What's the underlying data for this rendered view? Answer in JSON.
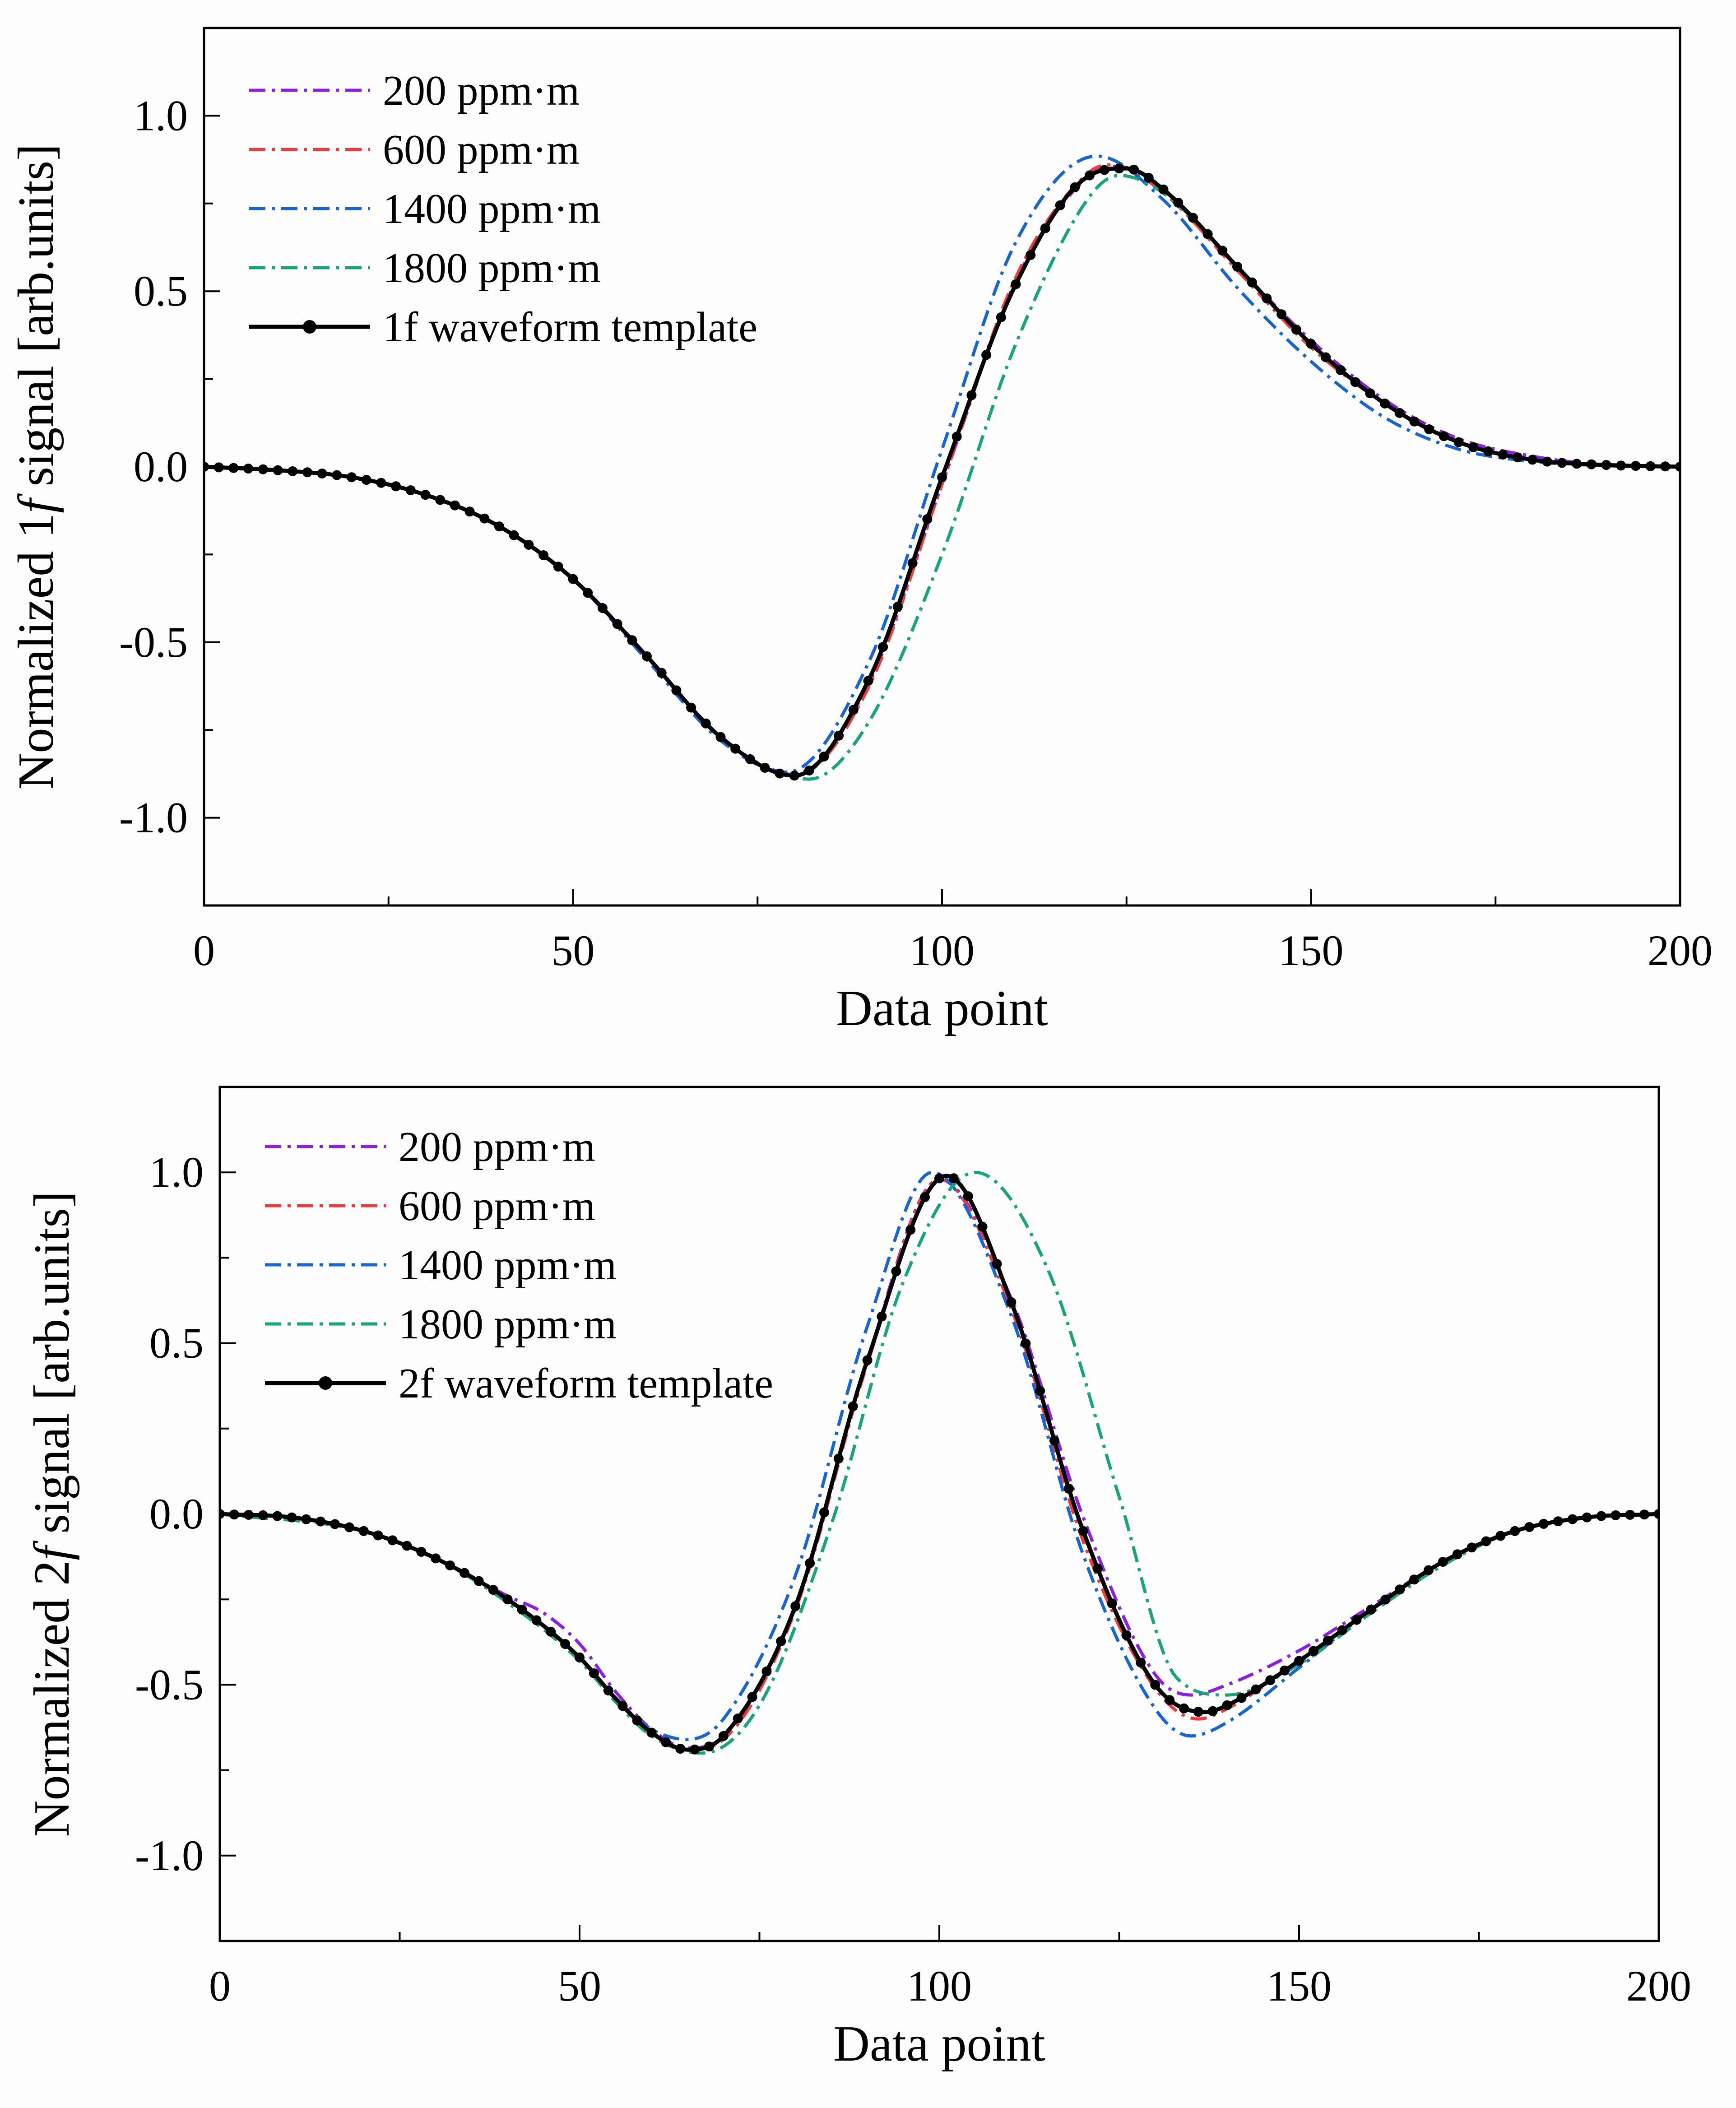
{
  "chart_data": [
    {
      "type": "line",
      "xlabel": "Data point",
      "ylabel": {
        "pre": "Normalized 1",
        "italic": "f",
        "post": " signal [arb.units]"
      },
      "xlim": [
        0,
        200
      ],
      "ylim": [
        -1.25,
        1.25
      ],
      "xticks": [
        0,
        50,
        100,
        150,
        200
      ],
      "xtick_labels": [
        "0",
        "50",
        "100",
        "150",
        "200"
      ],
      "yticks": [
        -1.0,
        -0.5,
        0.0,
        0.5,
        1.0
      ],
      "ytick_labels": [
        "-1.0",
        "-0.5",
        "0.0",
        "0.5",
        "1.0"
      ],
      "legend_position": "top-left",
      "grid": false,
      "series": [
        {
          "name": "200 ppm·m",
          "color": "#8b1ee8",
          "style": "dashdot",
          "x": [
            0,
            20,
            30,
            40,
            50,
            60,
            70,
            80,
            90,
            100,
            110,
            120,
            124,
            130,
            140,
            150,
            160,
            170,
            180,
            190,
            200
          ],
          "y": [
            0,
            -0.03,
            -0.08,
            -0.17,
            -0.32,
            -0.55,
            -0.77,
            -0.875,
            -0.62,
            -0.05,
            0.53,
            0.83,
            0.855,
            0.79,
            0.57,
            0.36,
            0.19,
            0.08,
            0.03,
            0.005,
            0
          ]
        },
        {
          "name": "600 ppm·m",
          "color": "#ef3b3b",
          "style": "dashdot",
          "x": [
            0,
            20,
            30,
            40,
            50,
            60,
            70,
            80,
            90,
            100,
            110,
            120,
            123,
            130,
            140,
            150,
            160,
            170,
            180,
            190,
            200
          ],
          "y": [
            0,
            -0.03,
            -0.08,
            -0.17,
            -0.32,
            -0.54,
            -0.77,
            -0.88,
            -0.63,
            -0.05,
            0.54,
            0.84,
            0.86,
            0.78,
            0.56,
            0.34,
            0.18,
            0.07,
            0.02,
            0.005,
            0
          ]
        },
        {
          "name": "1400 ppm·m",
          "color": "#1565d8",
          "style": "dashdot",
          "x": [
            0,
            20,
            30,
            40,
            50,
            60,
            70,
            79,
            90,
            100,
            110,
            121,
            130,
            140,
            150,
            160,
            170,
            180,
            190,
            200
          ],
          "y": [
            0,
            -0.03,
            -0.08,
            -0.17,
            -0.32,
            -0.55,
            -0.78,
            -0.87,
            -0.56,
            0.05,
            0.64,
            0.885,
            0.76,
            0.51,
            0.3,
            0.14,
            0.05,
            0.015,
            0.003,
            0
          ]
        },
        {
          "name": "1800 ppm·m",
          "color": "#17a57a",
          "style": "dashdot",
          "x": [
            0,
            20,
            30,
            40,
            50,
            60,
            70,
            82,
            90,
            100,
            110,
            120,
            124,
            130,
            140,
            150,
            160,
            170,
            180,
            190,
            200
          ],
          "y": [
            0,
            -0.03,
            -0.08,
            -0.17,
            -0.32,
            -0.54,
            -0.77,
            -0.89,
            -0.73,
            -0.25,
            0.35,
            0.77,
            0.83,
            0.78,
            0.57,
            0.35,
            0.18,
            0.07,
            0.02,
            0.005,
            0
          ]
        },
        {
          "name": "1f waveform template",
          "color": "#000000",
          "style": "solid-markers",
          "x": [
            0,
            10,
            20,
            30,
            40,
            50,
            60,
            70,
            80,
            90,
            100,
            110,
            120,
            125,
            130,
            140,
            150,
            160,
            170,
            180,
            190,
            200
          ],
          "y": [
            0,
            -0.01,
            -0.03,
            -0.08,
            -0.17,
            -0.32,
            -0.54,
            -0.77,
            -0.88,
            -0.61,
            -0.03,
            0.52,
            0.83,
            0.85,
            0.79,
            0.57,
            0.35,
            0.18,
            0.07,
            0.02,
            0.005,
            0
          ]
        }
      ]
    },
    {
      "type": "line",
      "xlabel": "Data point",
      "ylabel": {
        "pre": "Normalized 2",
        "italic": "f",
        "post": " signal [arb.units]"
      },
      "xlim": [
        0,
        200
      ],
      "ylim": [
        -1.25,
        1.25
      ],
      "xticks": [
        0,
        50,
        100,
        150,
        200
      ],
      "xtick_labels": [
        "0",
        "50",
        "100",
        "150",
        "200"
      ],
      "yticks": [
        -1.0,
        -0.5,
        0.0,
        0.5,
        1.0
      ],
      "ytick_labels": [
        "-1.0",
        "-0.5",
        "0.0",
        "0.5",
        "1.0"
      ],
      "legend_position": "top-left",
      "grid": false,
      "series": [
        {
          "name": "200 ppm·m",
          "color": "#8b1ee8",
          "style": "dashdot",
          "x": [
            0,
            20,
            30,
            40,
            45,
            50,
            55,
            60,
            65,
            70,
            80,
            90,
            100,
            110,
            120,
            130,
            135,
            140,
            150,
            160,
            170,
            180,
            190,
            200
          ],
          "y": [
            0,
            -0.05,
            -0.13,
            -0.24,
            -0.29,
            -0.38,
            -0.52,
            -0.63,
            -0.685,
            -0.65,
            -0.27,
            0.45,
            0.98,
            0.63,
            -0.01,
            -0.47,
            -0.53,
            -0.5,
            -0.4,
            -0.27,
            -0.14,
            -0.05,
            -0.01,
            0
          ]
        },
        {
          "name": "600 ppm·m",
          "color": "#ef3b3b",
          "style": "dashdot",
          "x": [
            0,
            20,
            30,
            40,
            50,
            55,
            60,
            65,
            70,
            80,
            90,
            100,
            110,
            120,
            130,
            136,
            140,
            150,
            160,
            170,
            180,
            190,
            200
          ],
          "y": [
            0,
            -0.05,
            -0.13,
            -0.25,
            -0.42,
            -0.54,
            -0.64,
            -0.69,
            -0.66,
            -0.28,
            0.44,
            0.98,
            0.6,
            -0.08,
            -0.51,
            -0.6,
            -0.57,
            -0.43,
            -0.28,
            -0.14,
            -0.05,
            -0.01,
            0
          ]
        },
        {
          "name": "1400 ppm·m",
          "color": "#1565d8",
          "style": "dashdot",
          "x": [
            0,
            20,
            30,
            40,
            50,
            55,
            60,
            65,
            70,
            80,
            90,
            99,
            110,
            120,
            130,
            135,
            140,
            150,
            160,
            170,
            180,
            190,
            200
          ],
          "y": [
            0,
            -0.05,
            -0.13,
            -0.25,
            -0.42,
            -0.54,
            -0.63,
            -0.66,
            -0.6,
            -0.18,
            0.55,
            1.0,
            0.58,
            -0.12,
            -0.57,
            -0.65,
            -0.61,
            -0.45,
            -0.28,
            -0.14,
            -0.05,
            -0.01,
            0
          ]
        },
        {
          "name": "1800 ppm·m",
          "color": "#17a57a",
          "style": "dashdot",
          "x": [
            0,
            20,
            30,
            40,
            50,
            55,
            60,
            67,
            75,
            85,
            95,
            105,
            115,
            125,
            133,
            140,
            150,
            160,
            170,
            180,
            190,
            200
          ],
          "y": [
            0,
            -0.05,
            -0.13,
            -0.26,
            -0.43,
            -0.55,
            -0.65,
            -0.7,
            -0.56,
            -0.03,
            0.68,
            1.0,
            0.72,
            0.05,
            -0.48,
            -0.53,
            -0.44,
            -0.29,
            -0.15,
            -0.05,
            -0.01,
            0
          ]
        },
        {
          "name": "2f waveform template",
          "color": "#000000",
          "style": "solid-markers",
          "x": [
            0,
            10,
            20,
            30,
            40,
            50,
            55,
            60,
            65,
            70,
            80,
            90,
            101,
            110,
            120,
            130,
            137,
            140,
            150,
            160,
            170,
            180,
            190,
            200
          ],
          "y": [
            0,
            -0.01,
            -0.05,
            -0.13,
            -0.25,
            -0.42,
            -0.54,
            -0.64,
            -0.69,
            -0.65,
            -0.27,
            0.45,
            0.99,
            0.62,
            -0.05,
            -0.5,
            -0.58,
            -0.56,
            -0.43,
            -0.28,
            -0.14,
            -0.05,
            -0.01,
            0
          ]
        }
      ]
    }
  ]
}
